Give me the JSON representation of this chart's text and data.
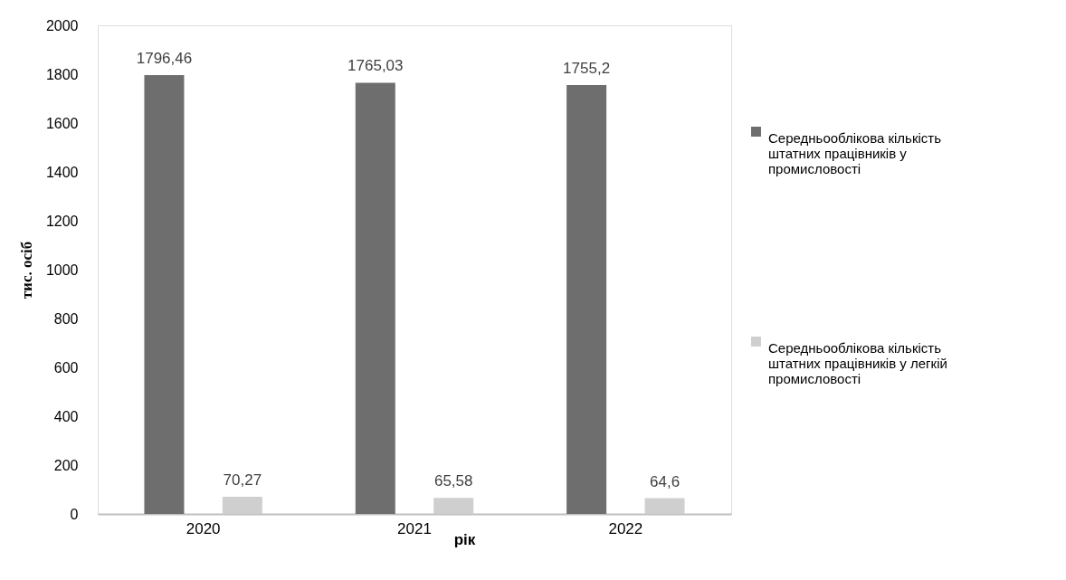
{
  "chart_data": {
    "type": "bar",
    "xlabel": "рік",
    "ylabel": "тис. осіб",
    "categories": [
      "2020",
      "2021",
      "2022"
    ],
    "series": [
      {
        "name": "Середньооблікова кількість штатних працівників у промисловості",
        "color": "#6e6e6e",
        "values": [
          1796.46,
          1765.03,
          1755.2
        ],
        "value_labels": [
          "1796,46",
          "1765,03",
          "1755,2"
        ]
      },
      {
        "name": "Середньооблікова кількість штатних працівників у легкій промисловості",
        "color": "#cfcfcf",
        "values": [
          70.27,
          65.58,
          64.6
        ],
        "value_labels": [
          "70,27",
          "65,58",
          "64,6"
        ]
      }
    ],
    "ylim": [
      0,
      2000
    ],
    "yticks": [
      0,
      200,
      400,
      600,
      800,
      1000,
      1200,
      1400,
      1600,
      1800,
      2000
    ],
    "grid": false,
    "legend": "right"
  }
}
